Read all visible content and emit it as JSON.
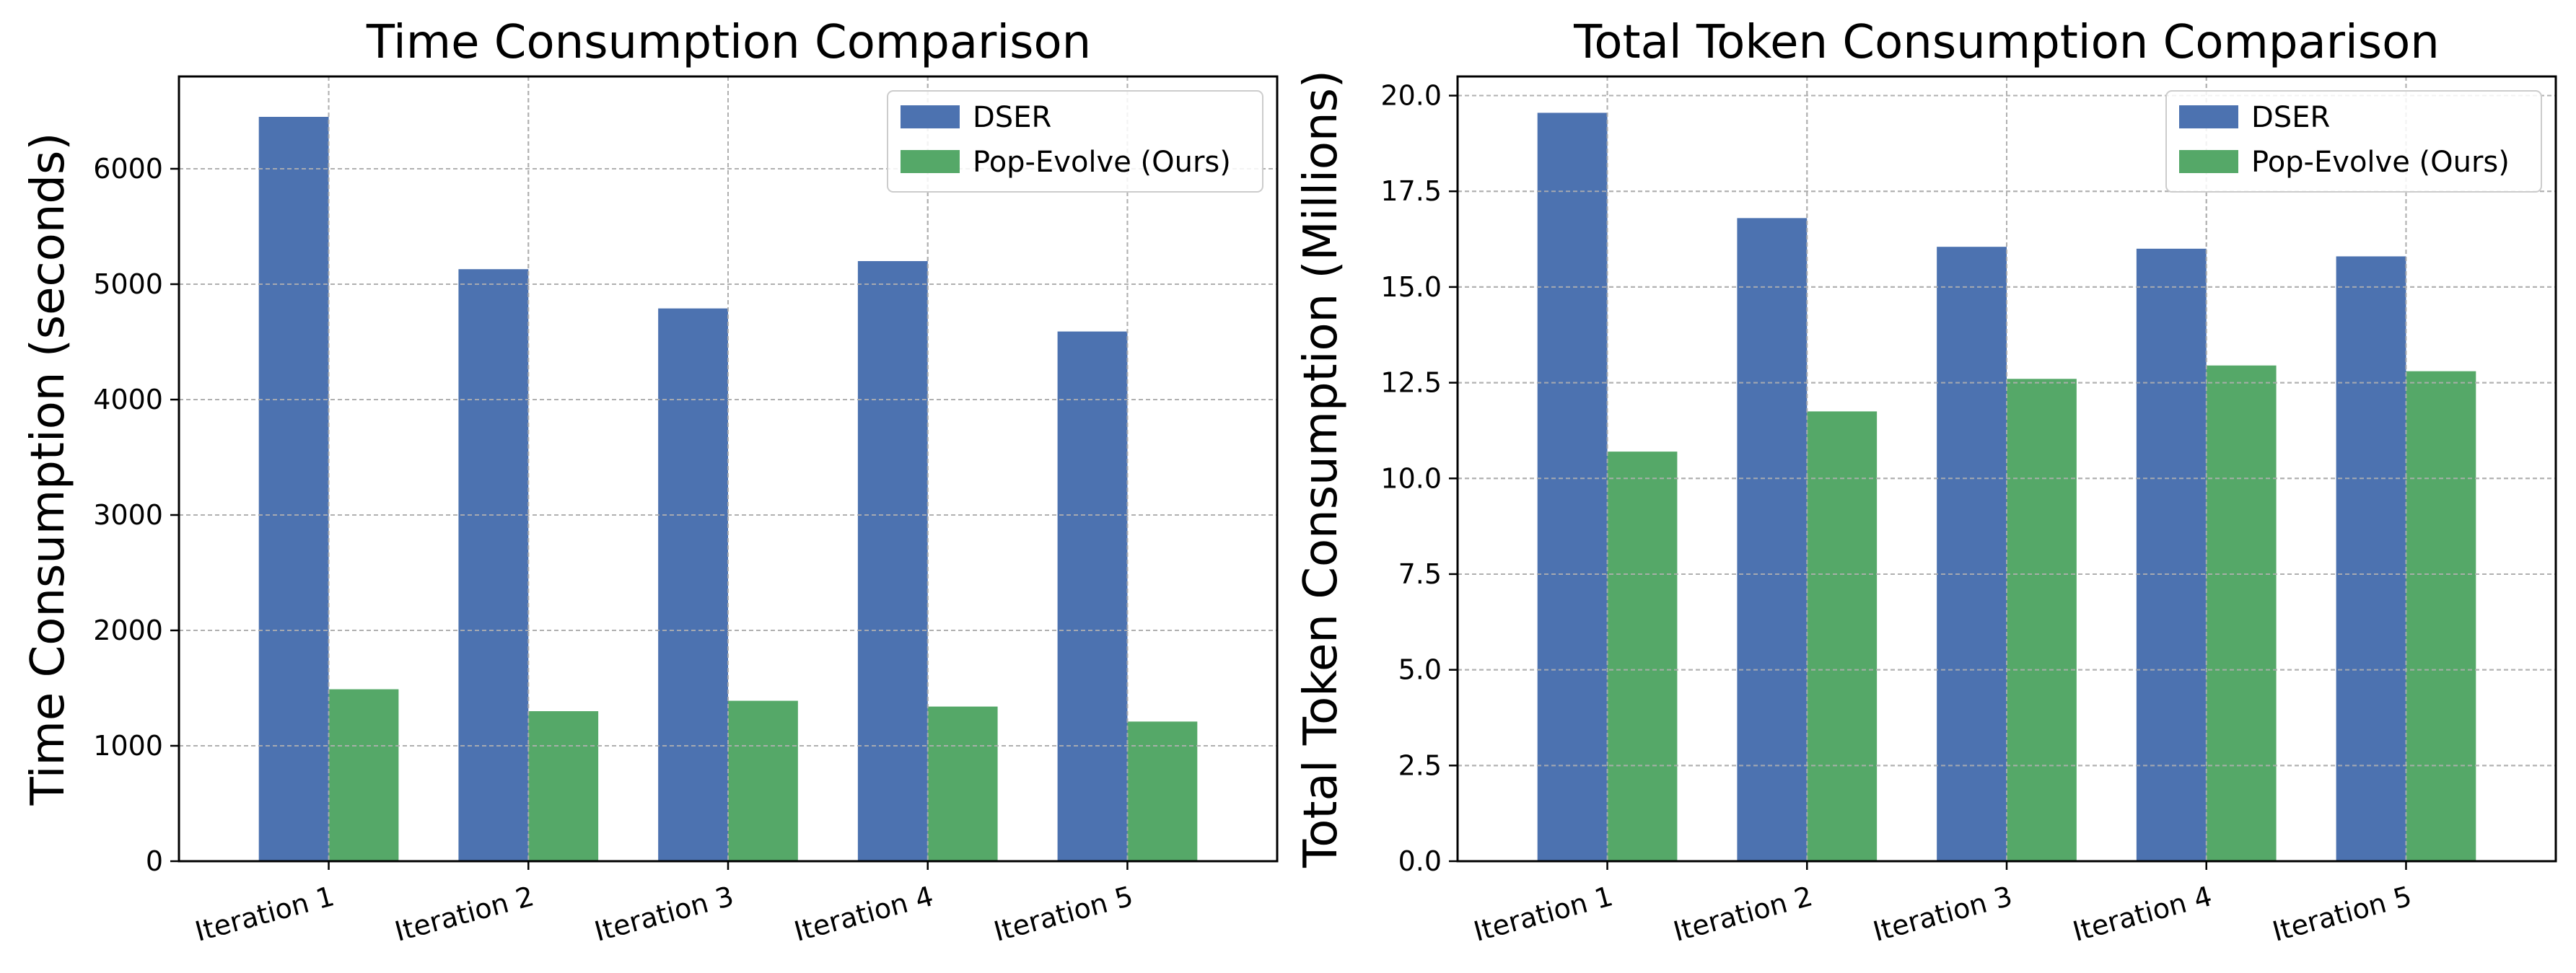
{
  "chart_data": [
    {
      "type": "bar",
      "title": "Time Consumption Comparison",
      "xlabel": "",
      "ylabel": "Time Consumption (seconds)",
      "categories": [
        "Iteration 1",
        "Iteration 2",
        "Iteration 3",
        "Iteration 4",
        "Iteration 5"
      ],
      "ylim": [
        0,
        6800
      ],
      "yticks": [
        0,
        1000,
        2000,
        3000,
        4000,
        5000,
        6000
      ],
      "ytick_labels": [
        "0",
        "1000",
        "2000",
        "3000",
        "4000",
        "5000",
        "6000"
      ],
      "grid": true,
      "legend_position": "top-right",
      "series": [
        {
          "name": "DSER",
          "color": "#4C72B0",
          "values": [
            6450,
            5130,
            4790,
            5200,
            4590
          ]
        },
        {
          "name": "Pop-Evolve (Ours)",
          "color": "#55A868",
          "values": [
            1490,
            1300,
            1390,
            1340,
            1210
          ]
        }
      ]
    },
    {
      "type": "bar",
      "title": "Total Token Consumption Comparison",
      "xlabel": "",
      "ylabel": "Total Token Consumption (Millions)",
      "categories": [
        "Iteration 1",
        "Iteration 2",
        "Iteration 3",
        "Iteration 4",
        "Iteration 5"
      ],
      "ylim": [
        0,
        20.5
      ],
      "yticks": [
        0,
        2.5,
        5,
        7.5,
        10,
        12.5,
        15,
        17.5,
        20
      ],
      "ytick_labels": [
        "0.0",
        "2.5",
        "5.0",
        "7.5",
        "10.0",
        "12.5",
        "15.0",
        "17.5",
        "20.0"
      ],
      "grid": true,
      "legend_position": "top-right",
      "series": [
        {
          "name": "DSER",
          "color": "#4C72B0",
          "values": [
            19.55,
            16.8,
            16.05,
            16.0,
            15.8
          ]
        },
        {
          "name": "Pop-Evolve (Ours)",
          "color": "#55A868",
          "values": [
            10.7,
            11.75,
            12.6,
            12.95,
            12.8
          ]
        }
      ]
    }
  ]
}
